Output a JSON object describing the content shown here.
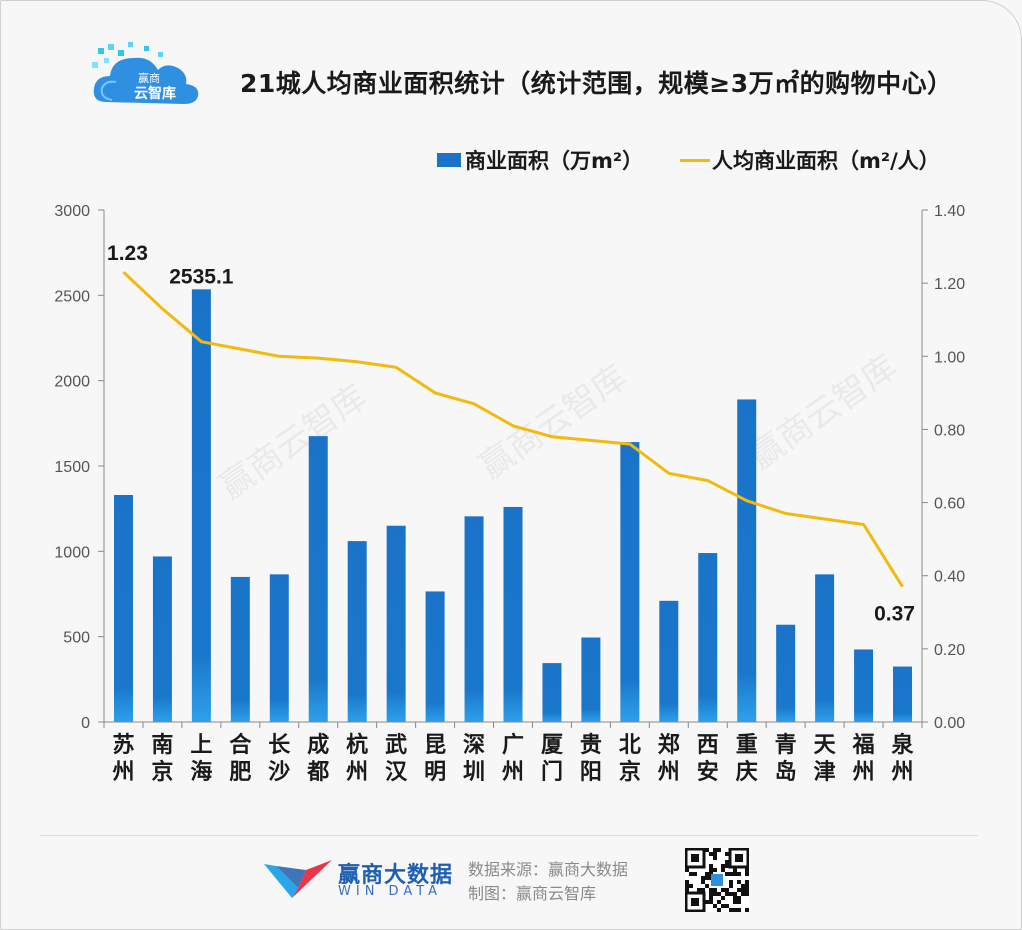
{
  "logo": {
    "text_line1": "赢商",
    "text_line2": "云智库"
  },
  "title": "21城人均商业面积统计（统计范围，规模≥3万㎡的购物中心）",
  "legend": {
    "bar": "商业面积（万m²）",
    "line": "人均商业面积（m²/人）"
  },
  "watermark": "赢商云智库",
  "colors": {
    "bar": "#1a73c8",
    "bar_light": "#2ea0ea",
    "line": "#f2b90f",
    "axis": "#666666"
  },
  "chart_data": {
    "type": "bar+line",
    "categories": [
      "苏州",
      "南京",
      "上海",
      "合肥",
      "长沙",
      "成都",
      "杭州",
      "武汉",
      "昆明",
      "深圳",
      "广州",
      "厦门",
      "贵阳",
      "北京",
      "郑州",
      "西安",
      "重庆",
      "青岛",
      "天津",
      "福州",
      "泉州"
    ],
    "series": [
      {
        "name": "商业面积（万m²）",
        "axis": "left",
        "type": "bar",
        "values": [
          1330,
          970,
          2535.1,
          850,
          865,
          1675,
          1060,
          1150,
          765,
          1205,
          1260,
          345,
          495,
          1640,
          710,
          990,
          1890,
          570,
          865,
          425,
          325
        ]
      },
      {
        "name": "人均商业面积（m²/人）",
        "axis": "right",
        "type": "line",
        "values": [
          1.23,
          1.13,
          1.04,
          1.02,
          1.0,
          0.995,
          0.985,
          0.97,
          0.9,
          0.87,
          0.81,
          0.78,
          0.77,
          0.76,
          0.68,
          0.66,
          0.605,
          0.57,
          0.555,
          0.54,
          0.37
        ]
      }
    ],
    "y_left": {
      "min": 0,
      "max": 3000,
      "ticks": [
        "0",
        "500",
        "1000",
        "1500",
        "2000",
        "2500",
        "3000"
      ]
    },
    "y_right": {
      "min": 0,
      "max": 1.4,
      "ticks": [
        "0.00",
        "0.20",
        "0.40",
        "0.60",
        "0.80",
        "1.00",
        "1.20",
        "1.40"
      ]
    },
    "annotations": [
      {
        "label": "1.23",
        "series": "line",
        "index": 0
      },
      {
        "label": "2535.1",
        "series": "bar",
        "index": 2
      },
      {
        "label": "0.37",
        "series": "line",
        "index": 20
      }
    ]
  },
  "footer": {
    "brand_cn": "赢商大数据",
    "brand_en": "WIN DATA",
    "source": "数据来源：赢商大数据",
    "made_by": "制图：赢商云智库"
  }
}
